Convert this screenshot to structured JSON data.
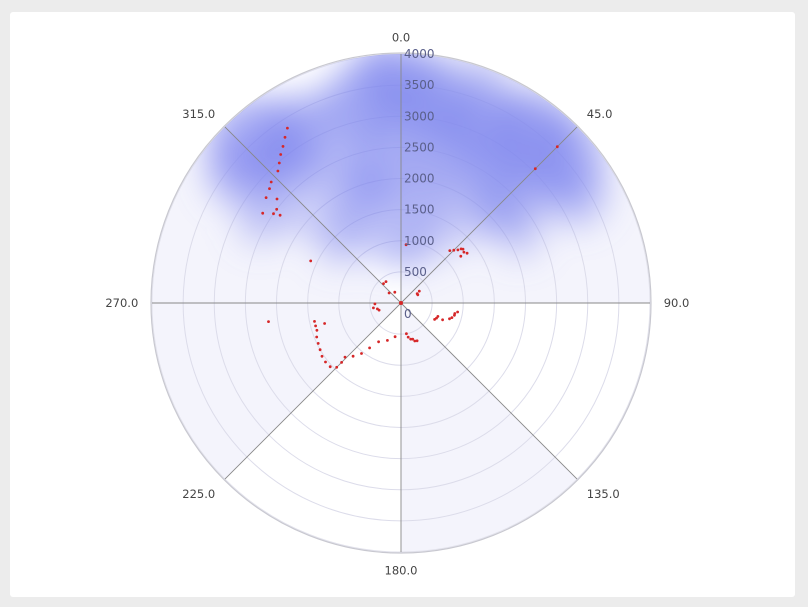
{
  "chart_data": {
    "type": "scatter",
    "coordinate_system": "polar",
    "angular_axis": {
      "direction": "clockwise",
      "zero_at": "top",
      "tick_labels": [
        "0.0",
        "45.0",
        "90.0",
        "135.0",
        "180.0",
        "225.0",
        "270.0",
        "315.0"
      ]
    },
    "radial_axis": {
      "range": [
        0,
        4000
      ],
      "tick_values": [
        0,
        500,
        1000,
        1500,
        2000,
        2500,
        3000,
        3500,
        4000
      ],
      "tick_labels": [
        "0",
        "500",
        "1000",
        "1500",
        "2000",
        "2500",
        "3000",
        "3500",
        "4000"
      ],
      "grid": true
    },
    "shaded_sectors_deg": [
      [
        0,
        90
      ],
      [
        135,
        180
      ],
      [
        225,
        315
      ]
    ],
    "colors": {
      "points": "#d62728",
      "sector": "#f4f4fc",
      "cloud": "#7f86ee",
      "grid": "#dcdcea",
      "spokes": "#888888",
      "axis_ring": "#c8c8d0"
    },
    "density_cloud": [
      {
        "theta": 350,
        "r": 3300,
        "w": 1.0
      },
      {
        "theta": 0,
        "r": 3500,
        "w": 1.0
      },
      {
        "theta": 10,
        "r": 3300,
        "w": 1.0
      },
      {
        "theta": 330,
        "r": 3200,
        "w": 0.9
      },
      {
        "theta": 318,
        "r": 3500,
        "w": 1.1
      },
      {
        "theta": 310,
        "r": 3300,
        "w": 0.9
      },
      {
        "theta": 323,
        "r": 2800,
        "w": 0.8
      },
      {
        "theta": 25,
        "r": 3200,
        "w": 1.0
      },
      {
        "theta": 38,
        "r": 3400,
        "w": 1.1
      },
      {
        "theta": 48,
        "r": 3500,
        "w": 1.0
      },
      {
        "theta": 58,
        "r": 3300,
        "w": 0.8
      },
      {
        "theta": 15,
        "r": 2600,
        "w": 0.9
      },
      {
        "theta": 35,
        "r": 2500,
        "w": 0.8
      },
      {
        "theta": 350,
        "r": 2300,
        "w": 0.9
      },
      {
        "theta": 340,
        "r": 1800,
        "w": 0.8
      },
      {
        "theta": 15,
        "r": 1700,
        "w": 0.7
      },
      {
        "theta": 45,
        "r": 2300,
        "w": 0.8
      },
      {
        "theta": 60,
        "r": 2200,
        "w": 0.6
      },
      {
        "theta": 5,
        "r": 1000,
        "w": 0.6
      },
      {
        "theta": 315,
        "r": 1400,
        "w": 0.6
      },
      {
        "theta": 300,
        "r": 2600,
        "w": 0.6
      },
      {
        "theta": 355,
        "r": 4000,
        "w": 0.6
      },
      {
        "theta": 20,
        "r": 4000,
        "w": 0.5
      }
    ],
    "series": [
      {
        "points": [
          [
            310,
            2600
          ],
          [
            308,
            2750
          ],
          [
            307,
            2500
          ],
          [
            306,
            2400
          ],
          [
            305,
            2500
          ],
          [
            303,
            2650
          ],
          [
            311,
            2800
          ],
          [
            313,
            2850
          ],
          [
            317,
            2900
          ],
          [
            319,
            2980
          ],
          [
            321,
            3070
          ],
          [
            323,
            3150
          ],
          [
            325,
            3250
          ],
          [
            327,
            3350
          ],
          [
            5,
            940
          ],
          [
            330,
            200
          ],
          [
            310,
            250
          ],
          [
            318,
            420
          ],
          [
            325,
            420
          ],
          [
            295,
            1600
          ],
          [
            45,
            3550
          ],
          [
            45,
            3050
          ],
          [
            43,
            1150
          ],
          [
            45,
            1200
          ],
          [
            47,
            1250
          ],
          [
            48,
            1300
          ],
          [
            49,
            1320
          ],
          [
            51,
            1300
          ],
          [
            53,
            1330
          ],
          [
            52,
            1220
          ],
          [
            60,
            300
          ],
          [
            57,
            350
          ],
          [
            64,
            300
          ],
          [
            110,
            630
          ],
          [
            113,
            620
          ],
          [
            116,
            600
          ],
          [
            112,
            720
          ],
          [
            108,
            820
          ],
          [
            106,
            850
          ],
          [
            103,
            880
          ],
          [
            101,
            880
          ],
          [
            99,
            920
          ],
          [
            170,
            500
          ],
          [
            168,
            560
          ],
          [
            165,
            600
          ],
          [
            162,
            610
          ],
          [
            160,
            650
          ],
          [
            157,
            660
          ],
          [
            190,
            550
          ],
          [
            200,
            640
          ],
          [
            210,
            720
          ],
          [
            215,
            880
          ],
          [
            218,
            1030
          ],
          [
            222,
            1150
          ],
          [
            226,
            1250
          ],
          [
            225,
            1350
          ],
          [
            225,
            1460
          ],
          [
            228,
            1530
          ],
          [
            232,
            1540
          ],
          [
            236,
            1530
          ],
          [
            240,
            1500
          ],
          [
            244,
            1480
          ],
          [
            248,
            1460
          ],
          [
            252,
            1420
          ],
          [
            255,
            1420
          ],
          [
            258,
            1420
          ],
          [
            255,
            1270
          ],
          [
            262,
            2150
          ],
          [
            252,
            370
          ],
          [
            256,
            390
          ],
          [
            260,
            450
          ],
          [
            268,
            420
          ]
        ]
      }
    ]
  }
}
